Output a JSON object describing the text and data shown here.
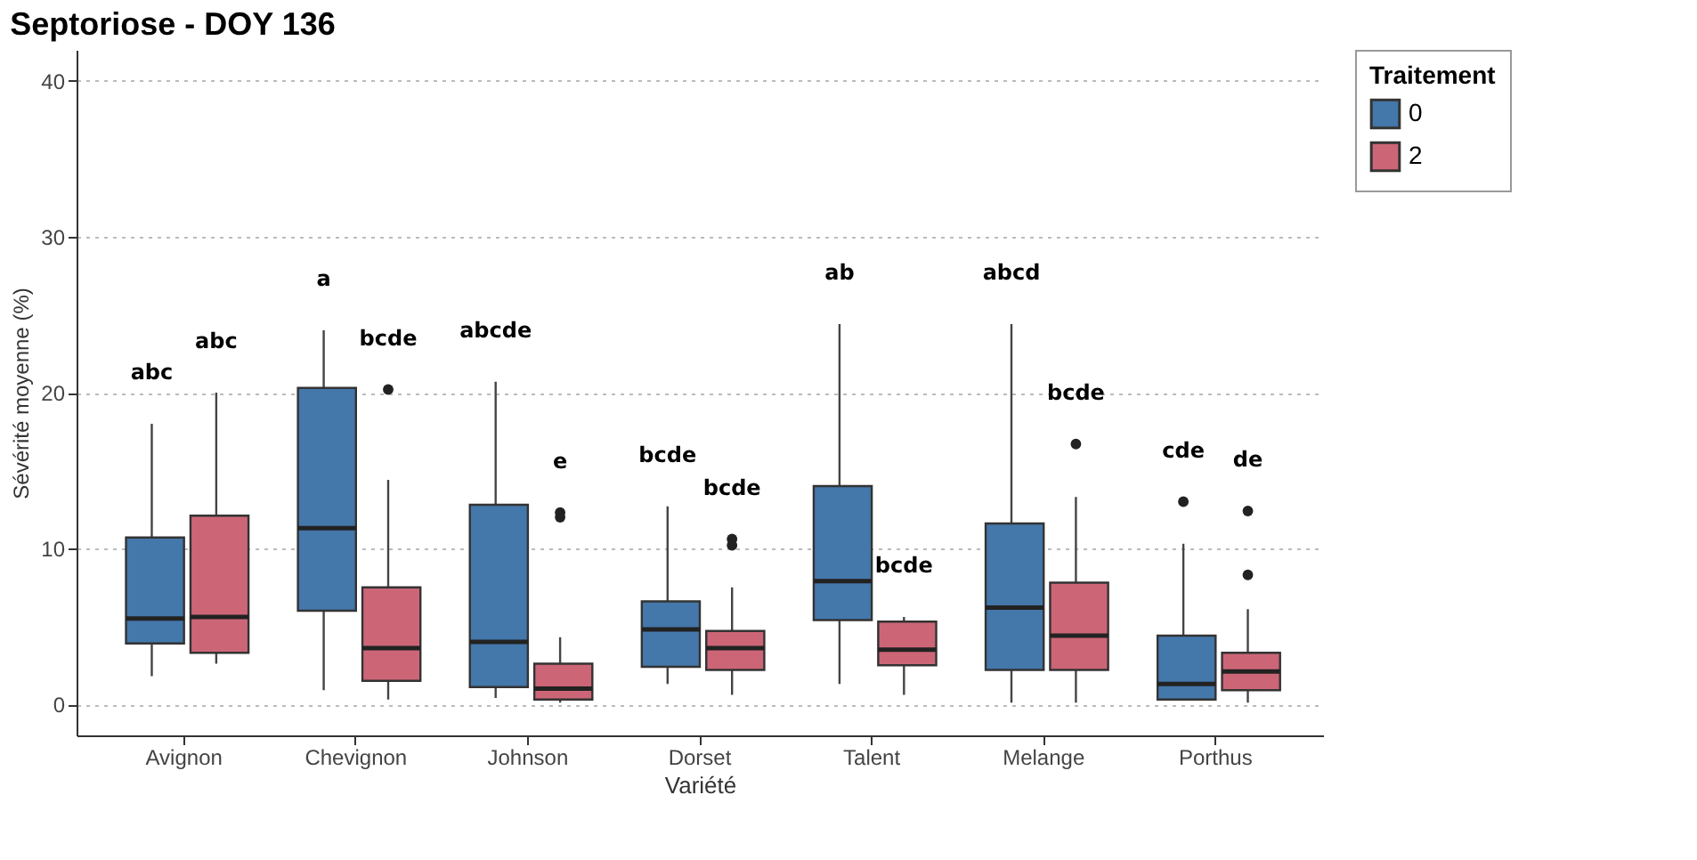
{
  "chart_data": {
    "type": "box",
    "title": "Septoriose -  DOY 136",
    "xlabel": "Variété",
    "ylabel": "Sévérité moyenne (%)",
    "legend_title": "Traitement",
    "legend": "right",
    "grid": "y",
    "categories": [
      "Avignon",
      "Chevignon",
      "Johnson",
      "Dorset",
      "Talent",
      "Melange",
      "Porthus"
    ],
    "ylim": [
      -2,
      42
    ],
    "yticks": [
      0,
      10,
      20,
      30,
      40
    ],
    "series": [
      {
        "name": "0",
        "color": "#4477aa",
        "boxes": [
          {
            "low": 1.8,
            "q1": 3.9,
            "median": 5.5,
            "q3": 10.7,
            "high": 18.0
          },
          {
            "low": 0.9,
            "q1": 6.0,
            "median": 11.3,
            "q3": 20.3,
            "high": 24.0
          },
          {
            "low": 0.4,
            "q1": 1.1,
            "median": 4.0,
            "q3": 12.8,
            "high": 20.7
          },
          {
            "low": 1.3,
            "q1": 2.4,
            "median": 4.8,
            "q3": 6.6,
            "high": 12.7
          },
          {
            "low": 1.3,
            "q1": 5.4,
            "median": 7.9,
            "q3": 14.0,
            "high": 24.4
          },
          {
            "low": 0.1,
            "q1": 2.2,
            "median": 6.2,
            "q3": 11.6,
            "high": 24.4
          },
          {
            "low": 0.3,
            "q1": 0.3,
            "median": 1.3,
            "q3": 4.4,
            "high": 10.3,
            "outliers": [
              13.0
            ]
          }
        ]
      },
      {
        "name": "2",
        "color": "#cc6677",
        "boxes": [
          {
            "low": 2.6,
            "q1": 3.3,
            "median": 5.6,
            "q3": 12.1,
            "high": 20.0
          },
          {
            "low": 0.3,
            "q1": 1.5,
            "median": 3.6,
            "q3": 7.5,
            "high": 14.4,
            "outliers": [
              20.2
            ]
          },
          {
            "low": 0.1,
            "q1": 0.3,
            "median": 1.0,
            "q3": 2.6,
            "high": 4.3,
            "outliers": [
              12.0,
              12.3
            ]
          },
          {
            "low": 0.6,
            "q1": 2.2,
            "median": 3.6,
            "q3": 4.7,
            "high": 7.5,
            "outliers": [
              10.2,
              10.6
            ]
          },
          {
            "low": 0.6,
            "q1": 2.5,
            "median": 3.5,
            "q3": 5.3,
            "high": 5.6
          },
          {
            "low": 0.1,
            "q1": 2.2,
            "median": 4.4,
            "q3": 7.8,
            "high": 13.3,
            "outliers": [
              16.7
            ]
          },
          {
            "low": 0.1,
            "q1": 0.9,
            "median": 2.1,
            "q3": 3.3,
            "high": 6.1,
            "outliers": [
              8.3,
              12.4
            ]
          }
        ]
      }
    ],
    "annotations": [
      "abc",
      "abc",
      "a",
      "bcde",
      "abcde",
      "e",
      "bcde",
      "bcde",
      "ab",
      "bcde",
      "abcd",
      "bcde",
      "cde",
      "de"
    ]
  }
}
